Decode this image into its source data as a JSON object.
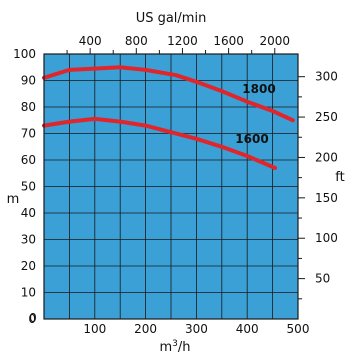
{
  "chart_data": {
    "type": "line",
    "colors": {
      "plot_bg": "#3aa0d6",
      "grid": "#1a1a1a",
      "curve": "#e0262b"
    },
    "grid": true,
    "x": {
      "label_base": "m",
      "label_sup": "3",
      "label_tail": "/h",
      "range": [
        0,
        500
      ],
      "ticks": [
        100,
        200,
        300,
        400,
        500
      ]
    },
    "x_top": {
      "label": "US gal/min",
      "ticks": [
        400,
        800,
        1200,
        1600,
        2000
      ]
    },
    "y": {
      "label": "m",
      "range": [
        0,
        100
      ],
      "ticks": [
        0,
        10,
        20,
        30,
        40,
        50,
        60,
        70,
        80,
        90,
        100
      ]
    },
    "y_right": {
      "label": "ft",
      "ticks": [
        50,
        100,
        150,
        200,
        250,
        300
      ]
    },
    "series": [
      {
        "name": "1800",
        "points": [
          [
            0,
            91
          ],
          [
            50,
            94
          ],
          [
            100,
            94.5
          ],
          [
            150,
            95
          ],
          [
            200,
            94
          ],
          [
            260,
            92
          ],
          [
            300,
            89.5
          ],
          [
            350,
            86
          ],
          [
            400,
            82
          ],
          [
            450,
            78.5
          ],
          [
            490,
            75
          ]
        ]
      },
      {
        "name": "1600",
        "points": [
          [
            0,
            73
          ],
          [
            50,
            74.5
          ],
          [
            100,
            75.5
          ],
          [
            150,
            74.5
          ],
          [
            200,
            73
          ],
          [
            250,
            70.5
          ],
          [
            300,
            68
          ],
          [
            350,
            65
          ],
          [
            400,
            61.5
          ],
          [
            455,
            57
          ]
        ]
      }
    ]
  }
}
